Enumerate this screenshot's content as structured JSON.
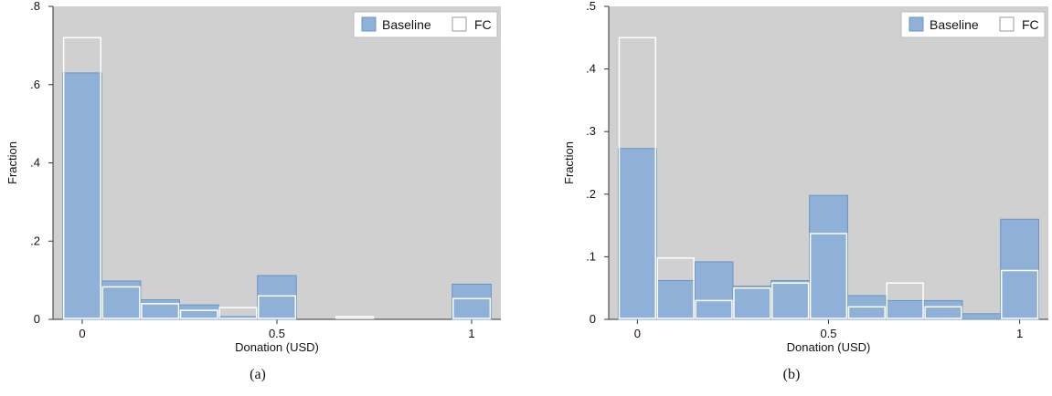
{
  "colors": {
    "plot_bg": "#d0d0d0",
    "baseline_fill": "#8fb1d8",
    "baseline_stroke": "#6a94c4",
    "fc_stroke": "#ffffff"
  },
  "chart_data": [
    {
      "type": "bar",
      "caption": "(a)",
      "xlabel": "Donation (USD)",
      "ylabel": "Fraction",
      "xlim": [
        -0.075,
        1.075
      ],
      "ylim": [
        0,
        0.8
      ],
      "xticks": [
        0,
        0.5,
        1
      ],
      "xtick_labels": [
        "0",
        "0.5",
        "1"
      ],
      "yticks": [
        0,
        0.2,
        0.4,
        0.6,
        0.8
      ],
      "ytick_labels": [
        "0",
        ".2",
        ".4",
        ".6",
        ".8"
      ],
      "grid": false,
      "legend": {
        "position": "top-right",
        "entries": [
          "Baseline",
          "FC"
        ]
      },
      "bins": [
        {
          "x0": -0.05,
          "x1": 0.05
        },
        {
          "x0": 0.05,
          "x1": 0.15
        },
        {
          "x0": 0.15,
          "x1": 0.25
        },
        {
          "x0": 0.25,
          "x1": 0.35
        },
        {
          "x0": 0.35,
          "x1": 0.45
        },
        {
          "x0": 0.45,
          "x1": 0.55
        },
        {
          "x0": 0.55,
          "x1": 0.65
        },
        {
          "x0": 0.65,
          "x1": 0.75
        },
        {
          "x0": 0.75,
          "x1": 0.85
        },
        {
          "x0": 0.85,
          "x1": 0.95
        },
        {
          "x0": 0.95,
          "x1": 1.05
        }
      ],
      "series": [
        {
          "name": "Baseline",
          "values": [
            0.63,
            0.098,
            0.05,
            0.037,
            0.007,
            0.112,
            0.0,
            0.0,
            0.0,
            0.0,
            0.09
          ]
        },
        {
          "name": "FC",
          "values": [
            0.72,
            0.083,
            0.04,
            0.023,
            0.03,
            0.06,
            0.0,
            0.007,
            0.0,
            0.0,
            0.053
          ]
        }
      ]
    },
    {
      "type": "bar",
      "caption": "(b)",
      "xlabel": "Donation (USD)",
      "ylabel": "Fraction",
      "xlim": [
        -0.075,
        1.075
      ],
      "ylim": [
        0,
        0.5
      ],
      "xticks": [
        0,
        0.5,
        1
      ],
      "xtick_labels": [
        "0",
        "0.5",
        "1"
      ],
      "yticks": [
        0,
        0.1,
        0.2,
        0.3,
        0.4,
        0.5
      ],
      "ytick_labels": [
        "0",
        ".1",
        ".2",
        ".3",
        ".4",
        ".5"
      ],
      "grid": false,
      "legend": {
        "position": "top-right",
        "entries": [
          "Baseline",
          "FC"
        ]
      },
      "bins": [
        {
          "x0": -0.05,
          "x1": 0.05
        },
        {
          "x0": 0.05,
          "x1": 0.15
        },
        {
          "x0": 0.15,
          "x1": 0.25
        },
        {
          "x0": 0.25,
          "x1": 0.35
        },
        {
          "x0": 0.35,
          "x1": 0.45
        },
        {
          "x0": 0.45,
          "x1": 0.55
        },
        {
          "x0": 0.55,
          "x1": 0.65
        },
        {
          "x0": 0.65,
          "x1": 0.75
        },
        {
          "x0": 0.75,
          "x1": 0.85
        },
        {
          "x0": 0.85,
          "x1": 0.95
        },
        {
          "x0": 0.95,
          "x1": 1.05
        }
      ],
      "series": [
        {
          "name": "Baseline",
          "values": [
            0.273,
            0.062,
            0.092,
            0.053,
            0.062,
            0.198,
            0.038,
            0.03,
            0.03,
            0.009,
            0.16
          ]
        },
        {
          "name": "FC",
          "values": [
            0.45,
            0.098,
            0.03,
            0.05,
            0.058,
            0.137,
            0.02,
            0.058,
            0.02,
            0.0,
            0.078
          ]
        }
      ]
    }
  ]
}
